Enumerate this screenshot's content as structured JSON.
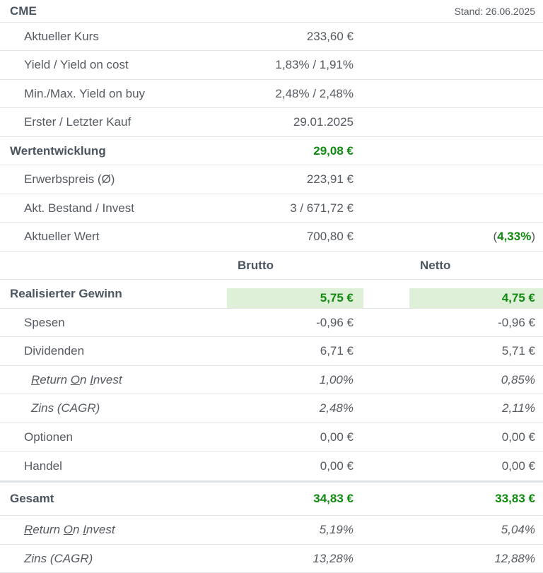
{
  "header": {
    "ticker": "CME",
    "stand": "Stand: 26.06.2025"
  },
  "info": {
    "kurs": {
      "label": "Aktueller Kurs",
      "value": "233,60 €"
    },
    "yield": {
      "label": "Yield / Yield on cost",
      "value": "1,83% / 1,91%"
    },
    "minmax": {
      "label": "Min./Max. Yield on buy",
      "value": "2,48% / 2,48%"
    },
    "kauf": {
      "label": "Erster / Letzter Kauf",
      "value": "29.01.2025"
    }
  },
  "wert": {
    "title": "Wertentwicklung",
    "value": "29,08 €",
    "erwerb": {
      "label": "Erwerbspreis (Ø)",
      "value": "223,91 €"
    },
    "bestand": {
      "label": "Akt. Bestand / Invest",
      "value": "3 / 671,72 €"
    },
    "aktuell": {
      "label": "Aktueller Wert",
      "value": "700,80 €",
      "pct": "4,33%"
    }
  },
  "columns": {
    "brutto": "Brutto",
    "netto": "Netto"
  },
  "realisiert": {
    "title": "Realisierter Gewinn",
    "brutto": "5,75 €",
    "netto": "4,75 €",
    "spesen": {
      "label": "Spesen",
      "brutto": "-0,96 €",
      "netto": "-0,96 €"
    },
    "dividenden": {
      "label": "Dividenden",
      "brutto": "6,71 €",
      "netto": "5,71 €"
    },
    "roi": {
      "label_parts": [
        "R",
        "eturn ",
        "O",
        "n ",
        "I",
        "nvest"
      ],
      "brutto": "1,00%",
      "netto": "0,85%"
    },
    "zins": {
      "label": "Zins (CAGR)",
      "brutto": "2,48%",
      "netto": "2,11%"
    },
    "optionen": {
      "label": "Optionen",
      "brutto": "0,00 €",
      "netto": "0,00 €"
    },
    "handel": {
      "label": "Handel",
      "brutto": "0,00 €",
      "netto": "0,00 €"
    }
  },
  "gesamt": {
    "title": "Gesamt",
    "brutto": "34,83 €",
    "netto": "33,83 €",
    "roi": {
      "label_parts": [
        "R",
        "eturn ",
        "O",
        "n ",
        "I",
        "nvest"
      ],
      "brutto": "5,19%",
      "netto": "5,04%"
    },
    "zins": {
      "label": "Zins (CAGR)",
      "brutto": "13,28%",
      "netto": "12,88%"
    }
  }
}
